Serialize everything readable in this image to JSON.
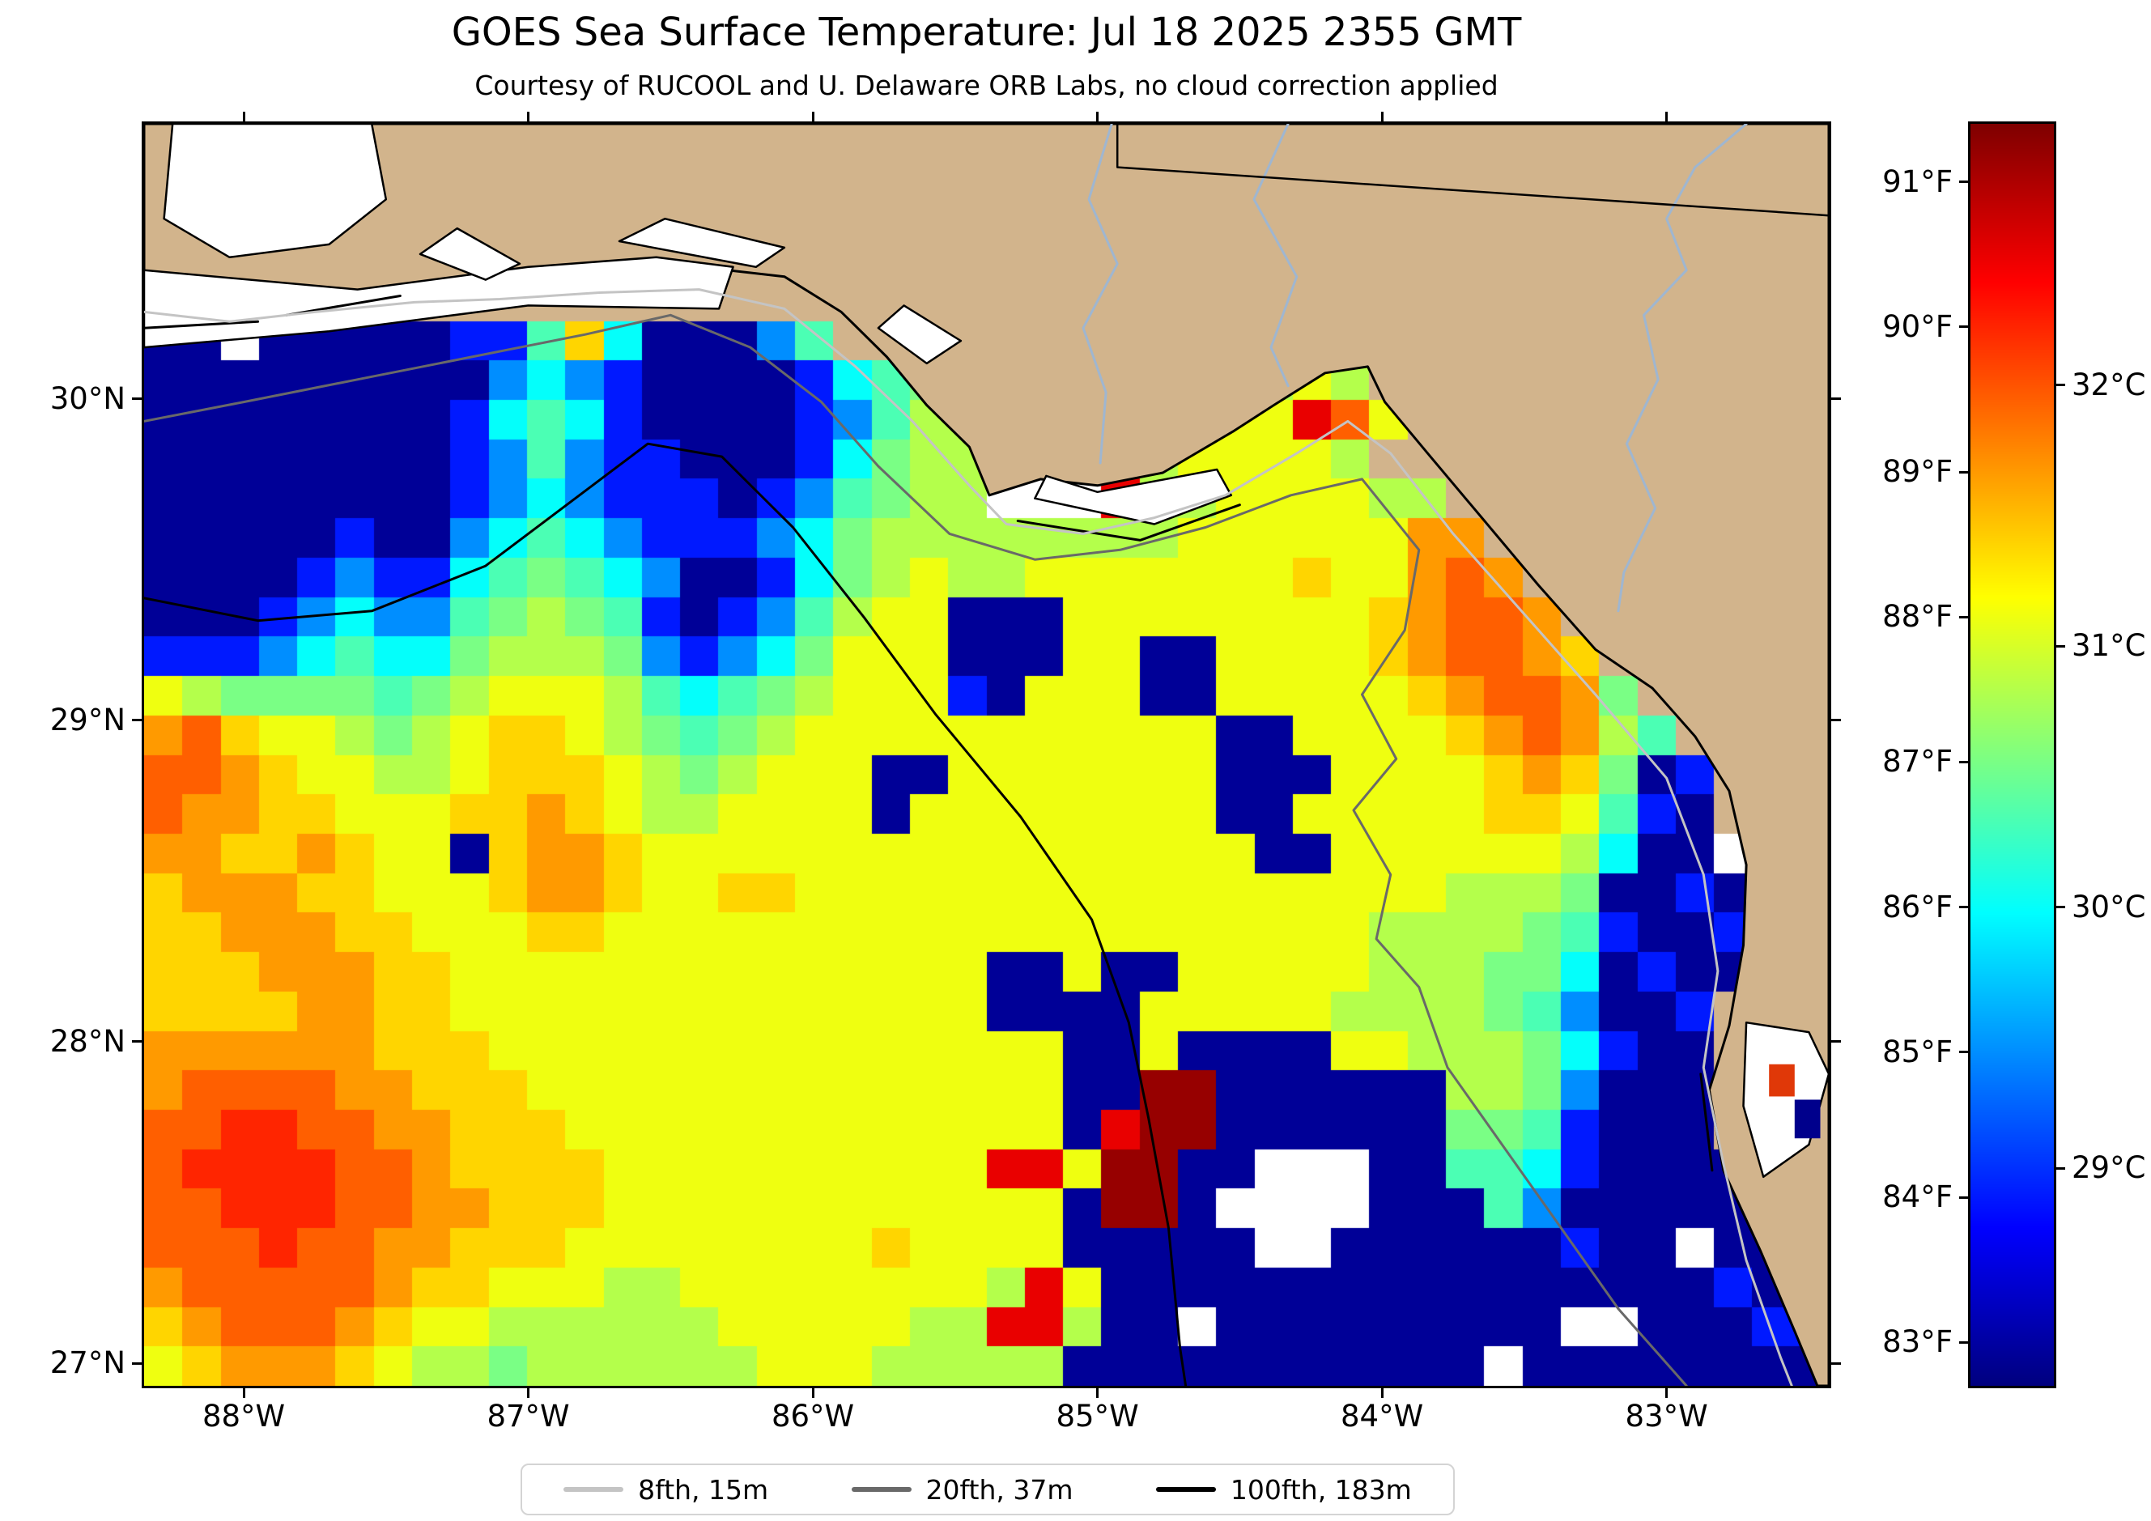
{
  "title": "GOES Sea Surface Temperature: Jul 18 2025 2355 GMT",
  "subtitle": "Courtesy of RUCOOL and U. Delaware ORB Labs, no cloud correction applied",
  "chart_data": {
    "type": "heatmap",
    "title": "GOES Sea Surface Temperature: Jul 18 2025 2355 GMT",
    "subtitle": "Courtesy of RUCOOL and U. Delaware ORB Labs, no cloud correction applied",
    "extent": {
      "lon_min": -88.35,
      "lon_max": -82.43,
      "lat_min": 26.93,
      "lat_max": 30.855
    },
    "axes": {
      "x_ticks": [
        {
          "deg": -88,
          "label": "88°W"
        },
        {
          "deg": -87,
          "label": "87°W"
        },
        {
          "deg": -86,
          "label": "86°W"
        },
        {
          "deg": -85,
          "label": "85°W"
        },
        {
          "deg": -84,
          "label": "84°W"
        },
        {
          "deg": -83,
          "label": "83°W"
        }
      ],
      "y_ticks": [
        {
          "deg": 30,
          "label": "30°N"
        },
        {
          "deg": 29,
          "label": "29°N"
        },
        {
          "deg": 28,
          "label": "28°N"
        },
        {
          "deg": 27,
          "label": "27°N"
        }
      ]
    },
    "colorbar": {
      "min_f": 82.7,
      "max_f": 91.4,
      "colormap": "jet",
      "f_ticks": [
        {
          "f": 91,
          "label": "91°F"
        },
        {
          "f": 90,
          "label": "90°F"
        },
        {
          "f": 89,
          "label": "89°F"
        },
        {
          "f": 88,
          "label": "88°F"
        },
        {
          "f": 87,
          "label": "87°F"
        },
        {
          "f": 86,
          "label": "86°F"
        },
        {
          "f": 85,
          "label": "85°F"
        },
        {
          "f": 84,
          "label": "84°F"
        },
        {
          "f": 83,
          "label": "83°F"
        }
      ],
      "c_ticks": [
        {
          "c": 32,
          "label": "32°C"
        },
        {
          "c": 31,
          "label": "31°C"
        },
        {
          "c": 30,
          "label": "30°C"
        },
        {
          "c": 29,
          "label": "29°C"
        }
      ]
    },
    "land_color": "#d2b48c",
    "cloud_color": "#ffffff",
    "grid": {
      "cols": 44,
      "rows": 32,
      "codes": {
        "a": 82.9,
        "b": 84.0,
        "c": 85.0,
        "d": 86.0,
        "e": 86.6,
        "f": 87.0,
        "g": 87.5,
        "h": 88.0,
        "i": 88.5,
        "j": 89.0,
        "k": 89.5,
        "l": 90.0,
        "m": 90.5,
        "n": 91.2,
        "w": "cloud",
        "L": "land"
      },
      "rows_data": [
        "LwwwwLLLLLLLLLLLLLLLLLLLLLLLLLLLLLLLLLLLLLLL",
        "LwwwwwLLLLLLLLLLLLLLLLLLLLLLLLLLLLLLLLLLLLLL",
        "wwwwwwLLwLLLwwLLLLLLLLLLLLLLLLLLLLLLLLLLLLLL",
        "wwwwwwwwwLLLwwwLLLLLLLLLLLLLLLLLLLLLLLLLLLLL",
        "wwwaaawLLLLLLLLLLLLLLLLLLLLLLLLLLLLLLLLLLLLL",
        "aawaaaaabbeidaaaceLLLLLLLLLLLLLLLLLLLLLLLLLL",
        "aaaaaaaaacdcbaaaabdefLLLLLLLLghgLLLLLLLLLLLL",
        "aaaaaaaabdedbaaaabceggfLLLLghhmkhLLLLLLLLLLL",
        "aaaaaaaabcecbbaaabdfggwwwgghhhhgLLLLLLLLLLLL",
        "aaaaaaaabcdcbbbabcefggwwwmgghhhhggLLLLLLLLLL",
        "aaaaabaacdedcbbbcdfgggggggghhhhhhjjLLLLLLLLL",
        "aaaabcbbdefedcaabdfghgghhhhhhhihhjkjLLLLLLLL",
        "aaabcdccefgfebabceghhaaahhhhhhhhijkkjLLLLLLL",
        "bbbcdeddfgggfcbcdfhhhaaahhaahhhhijkkjiLLLLLL",
        "hgffffefghhhgedefghhhbahhhaahhhhhijkkjfLLLLL",
        "jkihhgfghiihgfefghhhhhhhhhhhaahhhhijkjgeLLLL",
        "kkjihhgghiiihgfghhhaahhhhhhhaaahhhhijifabLLL",
        "kjjiihhhiijihgghhhhahhhhhhhhaahhhhhiihebaLLL",
        "jjiijihhaijjihhhhhhhhhhhhhhhhaahhhhhhgdaawLL",
        "ijjjiihhhijjihhiihhhhhhhhhhhhhhhhhgggfaabaLL",
        "iijjjiihhhiihhhhhhhhhhhhhhhhhhhhggggfebaabLL",
        "iiijjjiihhhhhhhhhhhhhhaahaahhhhhgggffdabaaLL",
        "iiiijjiihhhhhhhhhhhhhhaaaahhhhhggggfecaabLLL",
        "jjjjjjiiihhhhhhhhhhhhhhhaahaaaahhgggfdbaaLLL",
        "jkkkkjjiiihhhhhhhhhhhhhhaannaaaaaaggfcaaaLmL",
        "kkllkkjjiiihhhhhhhhhhhhhamnnaaaaaaffebaaaLaL",
        "kllllkkjiiiihhhhhhhhhhmmhnnaawwwaaeedbaaaaaL",
        "kklllkkjjiiihhhhhhhhhhhhannawwwwaaaecaaaaaaL",
        "kkklkkjjiiihhhhhhhhihhhhaaaaawwaaaaaabaawaaa",
        "jkkkkkjiihhhgghhhhhhhhgmhaaaaaaaaaaaaaaaabaa",
        "ijkkkjihhgggggghhhhhggmmgaawaaaaaaaaawwaaabb",
        "hijjjihggfgggggghhhgggggaaaaaaaaaaawaaaaaaaa"
      ]
    },
    "land_polygon": [
      [
        -88.35,
        30.24
      ],
      [
        -87.9,
        30.26
      ],
      [
        -87.5,
        30.3
      ],
      [
        -87.15,
        30.35
      ],
      [
        -86.8,
        30.39
      ],
      [
        -86.4,
        30.41
      ],
      [
        -86.1,
        30.38
      ],
      [
        -85.9,
        30.27
      ],
      [
        -85.74,
        30.13
      ],
      [
        -85.6,
        29.98
      ],
      [
        -85.45,
        29.85
      ],
      [
        -85.38,
        29.7
      ],
      [
        -85.2,
        29.75
      ],
      [
        -85.0,
        29.73
      ],
      [
        -84.77,
        29.77
      ],
      [
        -84.52,
        29.9
      ],
      [
        -84.38,
        29.98
      ],
      [
        -84.2,
        30.08
      ],
      [
        -84.05,
        30.1
      ],
      [
        -83.99,
        29.99
      ],
      [
        -83.83,
        29.82
      ],
      [
        -83.64,
        29.62
      ],
      [
        -83.45,
        29.42
      ],
      [
        -83.25,
        29.22
      ],
      [
        -83.05,
        29.1
      ],
      [
        -82.9,
        28.95
      ],
      [
        -82.78,
        28.78
      ],
      [
        -82.72,
        28.55
      ],
      [
        -82.73,
        28.3
      ],
      [
        -82.78,
        28.05
      ],
      [
        -82.85,
        27.85
      ],
      [
        -82.8,
        27.6
      ],
      [
        -82.67,
        27.35
      ],
      [
        -82.55,
        27.1
      ],
      [
        -82.47,
        26.93
      ],
      [
        -82.43,
        26.93
      ],
      [
        -82.43,
        30.855
      ],
      [
        -88.35,
        30.855
      ]
    ],
    "bays": [
      {
        "pts": [
          [
            -88.25,
            30.855
          ],
          [
            -87.55,
            30.855
          ],
          [
            -87.5,
            30.62
          ],
          [
            -87.7,
            30.48
          ],
          [
            -88.05,
            30.44
          ],
          [
            -88.28,
            30.56
          ]
        ]
      },
      {
        "pts": [
          [
            -88.35,
            30.4
          ],
          [
            -87.6,
            30.34
          ],
          [
            -87.0,
            30.41
          ],
          [
            -86.55,
            30.44
          ],
          [
            -86.28,
            30.41
          ],
          [
            -86.33,
            30.28
          ],
          [
            -87.0,
            30.29
          ],
          [
            -87.7,
            30.21
          ],
          [
            -88.35,
            30.16
          ]
        ]
      },
      {
        "pts": [
          [
            -87.38,
            30.45
          ],
          [
            -87.15,
            30.37
          ],
          [
            -87.03,
            30.42
          ],
          [
            -87.25,
            30.53
          ]
        ]
      },
      {
        "pts": [
          [
            -86.68,
            30.49
          ],
          [
            -86.2,
            30.41
          ],
          [
            -86.1,
            30.47
          ],
          [
            -86.52,
            30.56
          ]
        ]
      },
      {
        "pts": [
          [
            -85.77,
            30.22
          ],
          [
            -85.6,
            30.11
          ],
          [
            -85.48,
            30.18
          ],
          [
            -85.68,
            30.29
          ]
        ]
      },
      {
        "pts": [
          [
            -85.22,
            29.69
          ],
          [
            -84.8,
            29.61
          ],
          [
            -84.53,
            29.7
          ],
          [
            -84.58,
            29.78
          ],
          [
            -85.0,
            29.71
          ],
          [
            -85.18,
            29.76
          ]
        ]
      },
      {
        "pts": [
          [
            -82.72,
            28.06
          ],
          [
            -82.5,
            28.03
          ],
          [
            -82.43,
            27.9
          ],
          [
            -82.5,
            27.68
          ],
          [
            -82.66,
            27.58
          ],
          [
            -82.73,
            27.8
          ]
        ]
      }
    ],
    "islands": [
      [
        [
          -88.35,
          30.22
        ],
        [
          -87.95,
          30.24
        ]
      ],
      [
        [
          -87.85,
          30.26
        ],
        [
          -87.45,
          30.32
        ]
      ],
      [
        [
          -85.28,
          29.62
        ],
        [
          -84.85,
          29.56
        ],
        [
          -84.5,
          29.67
        ]
      ],
      [
        [
          -82.88,
          27.9
        ],
        [
          -82.84,
          27.6
        ]
      ]
    ],
    "patches": [
      {
        "pts": [
          [
            -82.64,
            27.93
          ],
          [
            -82.55,
            27.93
          ],
          [
            -82.55,
            27.83
          ],
          [
            -82.64,
            27.83
          ]
        ],
        "fill": "#e03808"
      },
      {
        "pts": [
          [
            -82.55,
            27.82
          ],
          [
            -82.46,
            27.82
          ],
          [
            -82.46,
            27.7
          ],
          [
            -82.55,
            27.7
          ]
        ],
        "fill": "#00008c"
      }
    ],
    "rivers": [
      [
        [
          -84.95,
          30.855
        ],
        [
          -85.03,
          30.62
        ],
        [
          -84.93,
          30.42
        ],
        [
          -85.05,
          30.22
        ],
        [
          -84.97,
          30.02
        ],
        [
          -84.99,
          29.8
        ]
      ],
      [
        [
          -84.33,
          30.855
        ],
        [
          -84.45,
          30.62
        ],
        [
          -84.3,
          30.38
        ],
        [
          -84.39,
          30.16
        ],
        [
          -84.33,
          30.04
        ]
      ],
      [
        [
          -82.72,
          30.855
        ],
        [
          -82.9,
          30.72
        ],
        [
          -83.0,
          30.56
        ],
        [
          -82.93,
          30.4
        ],
        [
          -83.08,
          30.26
        ],
        [
          -83.03,
          30.06
        ],
        [
          -83.14,
          29.86
        ],
        [
          -83.04,
          29.66
        ],
        [
          -83.15,
          29.46
        ],
        [
          -83.17,
          29.34
        ]
      ]
    ],
    "state_border": [
      [
        -84.93,
        30.855
      ],
      [
        -84.93,
        30.72
      ],
      [
        -82.43,
        30.57
      ]
    ],
    "contours": [
      {
        "name": "8fth, 15m",
        "color": "#c4c4c4",
        "width": 3,
        "path": [
          [
            -88.35,
            30.27
          ],
          [
            -88.05,
            30.24
          ],
          [
            -87.75,
            30.27
          ],
          [
            -87.4,
            30.3
          ],
          [
            -87.1,
            30.31
          ],
          [
            -86.75,
            30.33
          ],
          [
            -86.4,
            30.34
          ],
          [
            -86.1,
            30.28
          ],
          [
            -85.85,
            30.1
          ],
          [
            -85.65,
            29.93
          ],
          [
            -85.45,
            29.73
          ],
          [
            -85.32,
            29.61
          ],
          [
            -85.05,
            29.58
          ],
          [
            -84.8,
            29.63
          ],
          [
            -84.55,
            29.7
          ],
          [
            -84.3,
            29.83
          ],
          [
            -84.12,
            29.93
          ],
          [
            -83.97,
            29.83
          ],
          [
            -83.75,
            29.58
          ],
          [
            -83.5,
            29.33
          ],
          [
            -83.25,
            29.08
          ],
          [
            -83.0,
            28.82
          ],
          [
            -82.87,
            28.52
          ],
          [
            -82.82,
            28.22
          ],
          [
            -82.87,
            27.92
          ],
          [
            -82.8,
            27.62
          ],
          [
            -82.72,
            27.32
          ],
          [
            -82.6,
            27.02
          ],
          [
            -82.56,
            26.93
          ]
        ]
      },
      {
        "name": "20fth, 37m",
        "color": "#696969",
        "width": 3,
        "path": [
          [
            -88.35,
            29.93
          ],
          [
            -88.0,
            29.99
          ],
          [
            -87.6,
            30.06
          ],
          [
            -87.2,
            30.13
          ],
          [
            -86.8,
            30.2
          ],
          [
            -86.5,
            30.26
          ],
          [
            -86.22,
            30.16
          ],
          [
            -85.97,
            29.99
          ],
          [
            -85.77,
            29.79
          ],
          [
            -85.52,
            29.58
          ],
          [
            -85.22,
            29.5
          ],
          [
            -84.92,
            29.53
          ],
          [
            -84.62,
            29.6
          ],
          [
            -84.32,
            29.7
          ],
          [
            -84.07,
            29.75
          ],
          [
            -83.87,
            29.53
          ],
          [
            -83.92,
            29.28
          ],
          [
            -84.07,
            29.08
          ],
          [
            -83.95,
            28.88
          ],
          [
            -84.1,
            28.72
          ],
          [
            -83.97,
            28.52
          ],
          [
            -84.02,
            28.32
          ],
          [
            -83.87,
            28.17
          ],
          [
            -83.77,
            27.92
          ],
          [
            -83.57,
            27.67
          ],
          [
            -83.37,
            27.42
          ],
          [
            -83.17,
            27.17
          ],
          [
            -82.97,
            26.97
          ],
          [
            -82.93,
            26.93
          ]
        ]
      },
      {
        "name": "100fth, 183m",
        "color": "#000000",
        "width": 3,
        "path": [
          [
            -88.35,
            29.38
          ],
          [
            -87.95,
            29.31
          ],
          [
            -87.55,
            29.34
          ],
          [
            -87.15,
            29.48
          ],
          [
            -86.85,
            29.68
          ],
          [
            -86.58,
            29.86
          ],
          [
            -86.32,
            29.82
          ],
          [
            -86.07,
            29.6
          ],
          [
            -85.82,
            29.32
          ],
          [
            -85.57,
            29.02
          ],
          [
            -85.27,
            28.7
          ],
          [
            -85.02,
            28.38
          ],
          [
            -84.89,
            28.06
          ],
          [
            -84.82,
            27.76
          ],
          [
            -84.75,
            27.42
          ],
          [
            -84.71,
            27.05
          ],
          [
            -84.69,
            26.93
          ]
        ]
      }
    ]
  }
}
